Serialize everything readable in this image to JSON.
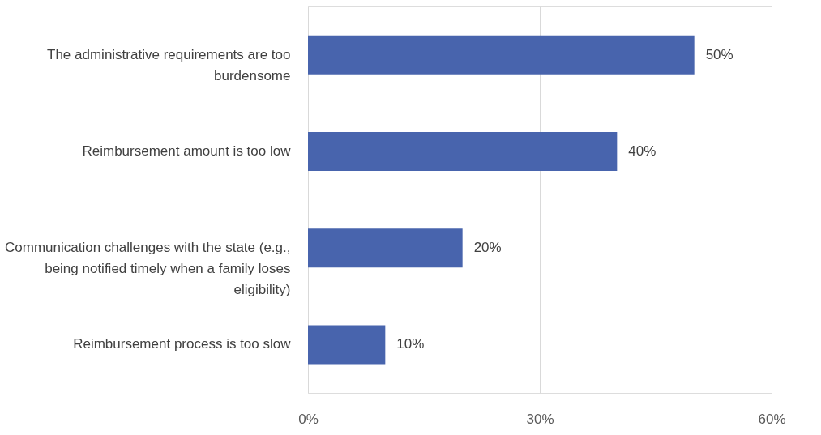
{
  "chart_data": {
    "type": "bar",
    "orientation": "horizontal",
    "categories": [
      "The administrative requirements are too burdensome",
      "Reimbursement amount is too low",
      "Communication challenges with the state (e.g., being notified timely when a family loses eligibility)",
      "Reimbursement process is too slow"
    ],
    "values": [
      50,
      40,
      20,
      10
    ],
    "value_labels": [
      "50%",
      "40%",
      "20%",
      "10%"
    ],
    "color": "#4864ad",
    "xlim": [
      0,
      60
    ],
    "xticks": [
      {
        "value": 0,
        "label": "0%"
      },
      {
        "value": 30,
        "label": "30%"
      },
      {
        "value": 60,
        "label": "60%"
      }
    ],
    "grid": "x"
  }
}
